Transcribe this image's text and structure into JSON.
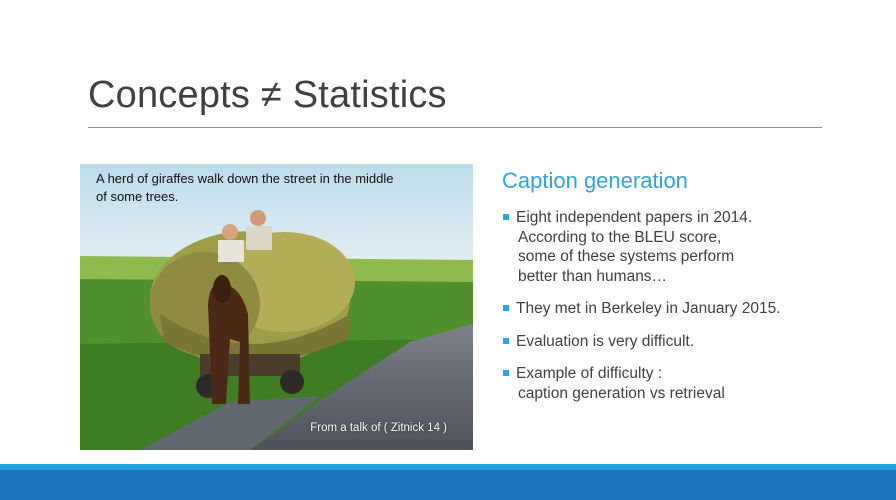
{
  "slide": {
    "title": "Concepts ≠ Statistics"
  },
  "photo": {
    "caption": "A herd of giraffes walk down the street in the middle of some trees.",
    "credit": "From a talk of ( Zitnick  14 )"
  },
  "content": {
    "heading": "Caption generation",
    "bullets": [
      {
        "lines": [
          "Eight independent papers in 2014.",
          "According to the BLEU score,",
          "some of these systems perform",
          "better than humans…"
        ]
      },
      {
        "lines": [
          "They met in Berkeley in January 2015."
        ]
      },
      {
        "lines": [
          "Evaluation is very difficult."
        ]
      },
      {
        "lines": [
          "Example of difficulty :",
          "caption generation vs retrieval"
        ]
      }
    ]
  },
  "colors": {
    "accent": "#2ea3dc",
    "footer": "#1e73be",
    "title_text": "#404040"
  }
}
